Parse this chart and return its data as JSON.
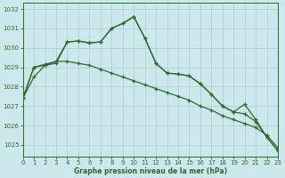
{
  "title": "Graphe pression niveau de la mer (hPa)",
  "background_color": "#cce8ec",
  "grid_color": "#aacccc",
  "line_color": "#2d6a2d",
  "xlim": [
    0,
    23
  ],
  "ylim": [
    1024.4,
    1032.3
  ],
  "yticks": [
    1025,
    1026,
    1027,
    1028,
    1029,
    1030,
    1031,
    1032
  ],
  "xticks": [
    0,
    1,
    2,
    3,
    4,
    5,
    6,
    7,
    8,
    9,
    10,
    11,
    12,
    13,
    14,
    15,
    16,
    17,
    18,
    19,
    20,
    21,
    22,
    23
  ],
  "series1": [
    1027.4,
    1028.5,
    1029.1,
    1029.2,
    1030.3,
    1030.35,
    1030.25,
    1030.3,
    1031.0,
    1031.25,
    1031.6,
    1030.5,
    1029.2,
    1028.7,
    1028.65,
    1028.55,
    1028.15,
    1027.6,
    1027.0,
    1026.7,
    1027.1,
    1026.3,
    1025.4,
    1024.7
  ],
  "series2": [
    1027.4,
    1029.0,
    1029.15,
    1029.3,
    1030.3,
    1030.35,
    1030.25,
    1030.3,
    1031.0,
    1031.25,
    1031.6,
    1030.5,
    1029.2,
    1028.7,
    1028.65,
    1028.55,
    1028.15,
    1027.6,
    1027.0,
    1026.7,
    1026.6,
    1026.2,
    1025.4,
    1024.7
  ],
  "series3": [
    1027.4,
    1029.0,
    1029.1,
    1029.3,
    1029.3,
    1029.2,
    1029.1,
    1028.9,
    1028.7,
    1028.5,
    1028.3,
    1028.1,
    1027.9,
    1027.7,
    1027.5,
    1027.3,
    1027.0,
    1026.8,
    1026.5,
    1026.3,
    1026.1,
    1025.9,
    1025.5,
    1024.85
  ]
}
